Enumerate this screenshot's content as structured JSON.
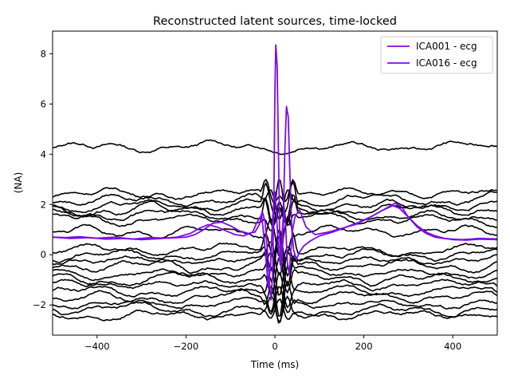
{
  "chart_data": {
    "type": "line",
    "title": "Reconstructed latent sources, time-locked",
    "xlabel": "Time (ms)",
    "ylabel": "(NA)",
    "xlim": [
      -500,
      500
    ],
    "ylim": [
      -3.2,
      8.9
    ],
    "x_ticks": [
      -400,
      -200,
      0,
      200,
      400
    ],
    "x_tick_labels": [
      "−400",
      "−200",
      "0",
      "200",
      "400"
    ],
    "y_ticks": [
      -2,
      0,
      2,
      4,
      6,
      8
    ],
    "y_tick_labels": [
      "−2",
      "0",
      "2",
      "4",
      "6",
      "8"
    ],
    "grid": false,
    "legend_position": "top-right",
    "highlight_color": "#7b0be8",
    "background_color": "#000000",
    "highlighted_series": [
      {
        "name": "ICA001 - ecg",
        "color": "#7b0be8",
        "points": [
          [
            -500,
            0.7
          ],
          [
            -470,
            0.68
          ],
          [
            -440,
            0.72
          ],
          [
            -400,
            0.66
          ],
          [
            -360,
            0.7
          ],
          [
            -320,
            0.62
          ],
          [
            -280,
            0.68
          ],
          [
            -240,
            0.66
          ],
          [
            -200,
            0.7
          ],
          [
            -180,
            0.8
          ],
          [
            -160,
            1.0
          ],
          [
            -140,
            1.25
          ],
          [
            -120,
            1.3
          ],
          [
            -100,
            1.15
          ],
          [
            -80,
            0.95
          ],
          [
            -60,
            0.85
          ],
          [
            -45,
            0.9
          ],
          [
            -35,
            1.2
          ],
          [
            -28,
            1.7
          ],
          [
            -22,
            1.3
          ],
          [
            -17,
            0.2
          ],
          [
            -12,
            -1.2
          ],
          [
            -9,
            -1.8
          ],
          [
            -5,
            -0.8
          ],
          [
            -2,
            3.0
          ],
          [
            0,
            6.5
          ],
          [
            2,
            8.35
          ],
          [
            5,
            7.5
          ],
          [
            8,
            4.0
          ],
          [
            11,
            0.5
          ],
          [
            14,
            -0.6
          ],
          [
            18,
            0.5
          ],
          [
            22,
            4.0
          ],
          [
            26,
            5.9
          ],
          [
            30,
            5.5
          ],
          [
            34,
            3.0
          ],
          [
            38,
            1.0
          ],
          [
            42,
            0.2
          ],
          [
            48,
            -0.2
          ],
          [
            55,
            0.1
          ],
          [
            65,
            0.35
          ],
          [
            80,
            0.55
          ],
          [
            100,
            0.75
          ],
          [
            130,
            0.9
          ],
          [
            160,
            1.1
          ],
          [
            190,
            1.3
          ],
          [
            220,
            1.55
          ],
          [
            250,
            1.85
          ],
          [
            270,
            2.05
          ],
          [
            285,
            1.9
          ],
          [
            300,
            1.5
          ],
          [
            320,
            1.1
          ],
          [
            340,
            0.85
          ],
          [
            360,
            0.7
          ],
          [
            380,
            0.65
          ],
          [
            400,
            0.62
          ],
          [
            420,
            0.6
          ],
          [
            440,
            0.62
          ],
          [
            460,
            0.65
          ],
          [
            480,
            0.64
          ],
          [
            500,
            0.63
          ]
        ]
      },
      {
        "name": "ICA016 - ecg",
        "color": "#7b0be8",
        "points": [
          [
            -500,
            0.7
          ],
          [
            -460,
            0.65
          ],
          [
            -420,
            0.68
          ],
          [
            -380,
            0.62
          ],
          [
            -340,
            0.65
          ],
          [
            -300,
            0.6
          ],
          [
            -260,
            0.64
          ],
          [
            -220,
            0.7
          ],
          [
            -190,
            0.85
          ],
          [
            -170,
            1.05
          ],
          [
            -150,
            1.2
          ],
          [
            -130,
            1.1
          ],
          [
            -110,
            0.95
          ],
          [
            -90,
            0.8
          ],
          [
            -70,
            0.75
          ],
          [
            -50,
            0.9
          ],
          [
            -40,
            1.3
          ],
          [
            -30,
            1.6
          ],
          [
            -24,
            0.6
          ],
          [
            -19,
            -0.4
          ],
          [
            -15,
            -1.3
          ],
          [
            -10,
            -0.5
          ],
          [
            -6,
            1.2
          ],
          [
            -3,
            2.0
          ],
          [
            0,
            2.5
          ],
          [
            4,
            1.5
          ],
          [
            8,
            0.2
          ],
          [
            12,
            -0.4
          ],
          [
            16,
            0.8
          ],
          [
            20,
            1.8
          ],
          [
            24,
            1.2
          ],
          [
            28,
            -0.3
          ],
          [
            32,
            -0.8
          ],
          [
            36,
            0.2
          ],
          [
            40,
            1.0
          ],
          [
            45,
            1.5
          ],
          [
            55,
            1.8
          ],
          [
            70,
            1.1
          ],
          [
            90,
            0.8
          ],
          [
            120,
            0.9
          ],
          [
            150,
            1.05
          ],
          [
            180,
            1.2
          ],
          [
            210,
            1.45
          ],
          [
            240,
            1.75
          ],
          [
            265,
            1.95
          ],
          [
            280,
            1.85
          ],
          [
            300,
            1.5
          ],
          [
            320,
            1.15
          ],
          [
            340,
            0.9
          ],
          [
            360,
            0.75
          ],
          [
            380,
            0.66
          ],
          [
            400,
            0.6
          ],
          [
            430,
            0.58
          ],
          [
            460,
            0.62
          ],
          [
            500,
            0.6
          ]
        ]
      }
    ],
    "background_series": [
      {
        "base": 4.3,
        "amp": 0.12,
        "spike": [
          0,
          0
        ]
      },
      {
        "base": 2.45,
        "amp": 0.12,
        "spike": [
          0.3,
          0.3
        ]
      },
      {
        "base": 2.2,
        "amp": 0.15,
        "spike": [
          0.4,
          -0.3
        ]
      },
      {
        "base": 1.95,
        "amp": 0.12,
        "spike": [
          0.5,
          0.4
        ]
      },
      {
        "base": 1.8,
        "amp": 0.15,
        "spike": [
          -0.4,
          0.6
        ]
      },
      {
        "base": 1.6,
        "amp": 0.12,
        "spike": [
          0.3,
          0.5
        ]
      },
      {
        "base": 1.4,
        "amp": 0.15,
        "spike": [
          -0.3,
          0.3
        ]
      },
      {
        "base": 0.9,
        "amp": 0.15,
        "spike": [
          0.5,
          -0.4
        ]
      },
      {
        "base": 0.2,
        "amp": 0.12,
        "spike": [
          0.3,
          0.4
        ]
      },
      {
        "base": 0.0,
        "amp": 0.15,
        "spike": [
          -0.5,
          0.5
        ]
      },
      {
        "base": -0.2,
        "amp": 0.12,
        "spike": [
          0.4,
          -0.3
        ]
      },
      {
        "base": -0.45,
        "amp": 0.15,
        "spike": [
          -0.5,
          0.6
        ]
      },
      {
        "base": -0.7,
        "amp": 0.12,
        "spike": [
          0.6,
          -0.4
        ]
      },
      {
        "base": -0.95,
        "amp": 0.15,
        "spike": [
          -0.4,
          0.5
        ]
      },
      {
        "base": -1.2,
        "amp": 0.12,
        "spike": [
          0.5,
          -0.6
        ]
      },
      {
        "base": -1.45,
        "amp": 0.15,
        "spike": [
          -0.5,
          0.4
        ]
      },
      {
        "base": -1.7,
        "amp": 0.15,
        "spike": [
          0.4,
          -0.5
        ]
      },
      {
        "base": -1.95,
        "amp": 0.12,
        "spike": [
          -0.3,
          0.3
        ]
      },
      {
        "base": -2.2,
        "amp": 0.15,
        "spike": [
          0.3,
          -0.3
        ]
      },
      {
        "base": -2.4,
        "amp": 0.12,
        "spike": [
          -0.2,
          0.2
        ]
      }
    ]
  }
}
